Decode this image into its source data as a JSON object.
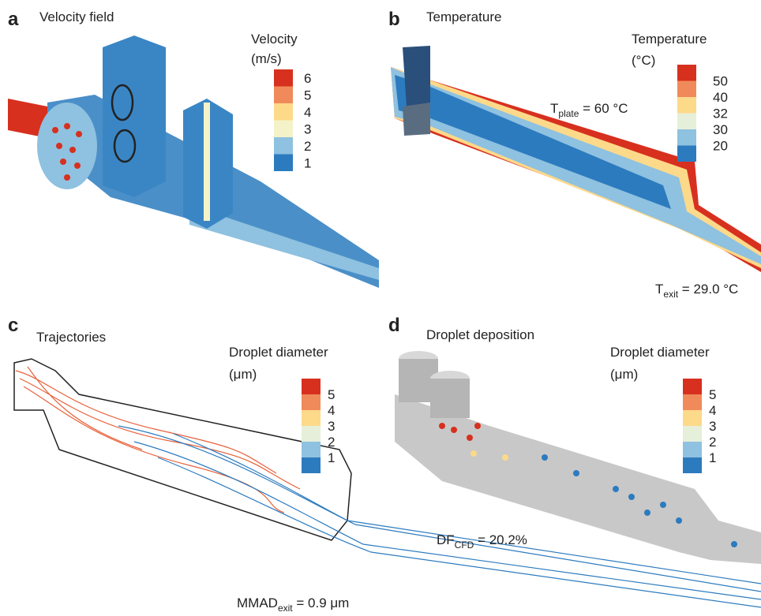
{
  "panels": [
    {
      "letter": "a",
      "title": "Velocity field",
      "legend": {
        "title": [
          "Velocity",
          "(m/s)"
        ],
        "labels": [
          "6",
          "5",
          "4",
          "3",
          "2",
          "1"
        ],
        "colors": [
          "#d7301f",
          "#f08a5a",
          "#fdd98a",
          "#f4f2c8",
          "#8fc1e0",
          "#2c7bbf"
        ]
      },
      "annotations": []
    },
    {
      "letter": "b",
      "title": "Temperature",
      "legend": {
        "title": [
          "Temperature",
          "(°C)"
        ],
        "labels": [
          "50",
          "40",
          "32",
          "30",
          "20"
        ],
        "colors": [
          "#d7301f",
          "#f08a5a",
          "#fdd98a",
          "#e6efd9",
          "#8fc1e0",
          "#2c7bbf"
        ]
      },
      "annotations": [
        {
          "main": "T",
          "sub": "plate",
          "rest": " = 60 °C"
        },
        {
          "main": "T",
          "sub": "exit",
          "rest": " = 29.0 °C"
        }
      ]
    },
    {
      "letter": "c",
      "title": "Trajectories",
      "legend": {
        "title": [
          "Droplet diameter",
          "(μm)"
        ],
        "labels": [
          "5",
          "4",
          "3",
          "2",
          "1"
        ],
        "colors": [
          "#d7301f",
          "#f08a5a",
          "#fdd98a",
          "#e6efd9",
          "#8fc1e0",
          "#2c7bbf"
        ]
      },
      "annotations": [
        {
          "main": "MMAD",
          "sub": "exit",
          "rest": " = 0.9 μm"
        }
      ]
    },
    {
      "letter": "d",
      "title": "Droplet deposition",
      "legend": {
        "title": [
          "Droplet diameter",
          "(μm)"
        ],
        "labels": [
          "5",
          "4",
          "3",
          "2",
          "1"
        ],
        "colors": [
          "#d7301f",
          "#f08a5a",
          "#fdd98a",
          "#e6efd9",
          "#8fc1e0",
          "#2c7bbf"
        ]
      },
      "annotations": [
        {
          "main": "DF",
          "sub": "CFD",
          "rest": " = 20.2%"
        }
      ]
    }
  ]
}
